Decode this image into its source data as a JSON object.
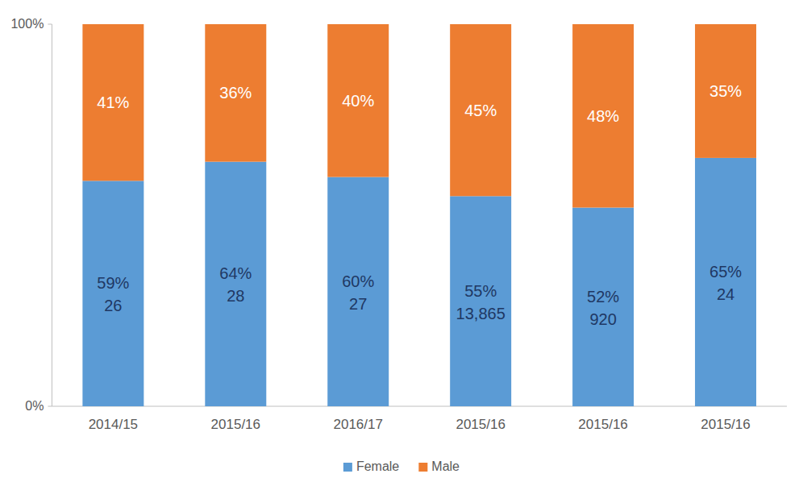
{
  "chart_data": {
    "type": "bar",
    "stacked": true,
    "data_labels": true,
    "grid": false,
    "legend": "bottom",
    "categories": [
      "2014/15",
      "2015/16",
      "2016/17",
      "2015/16",
      "2015/16",
      "2015/16"
    ],
    "ylim": [
      0,
      100
    ],
    "yticks": [
      {
        "value": 0,
        "label": "0%"
      },
      {
        "value": 100,
        "label": "100%"
      }
    ],
    "series": [
      {
        "name": "Female",
        "color": "#5b9bd5",
        "values": [
          59,
          64,
          60,
          55,
          52,
          65
        ],
        "value_labels": [
          "59%",
          "64%",
          "60%",
          "55%",
          "52%",
          "65%"
        ],
        "counts": [
          26,
          28,
          27,
          13865,
          920,
          24
        ]
      },
      {
        "name": "Male",
        "color": "#ed7d31",
        "values": [
          41,
          36,
          40,
          45,
          48,
          35
        ],
        "value_labels": [
          "41%",
          "36%",
          "40%",
          "45%",
          "48%",
          "35%"
        ]
      }
    ]
  }
}
